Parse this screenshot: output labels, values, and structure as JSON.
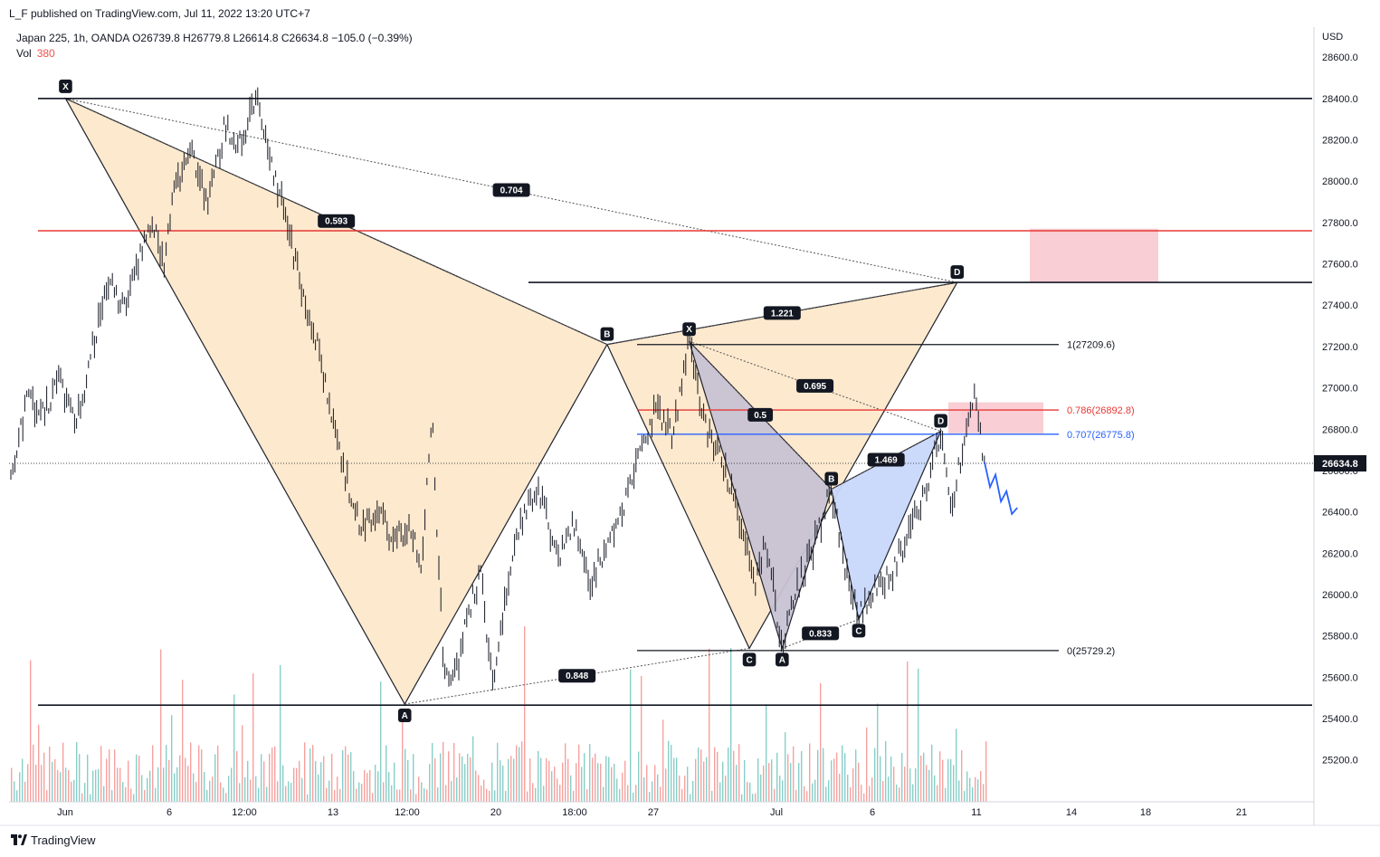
{
  "header": {
    "publisher": "L_F published on TradingView.com, Jul 11, 2022 13:20 UTC+7",
    "symbol_line": "Japan 225, 1h, OANDA  O26739.8  H26779.8  L26614.8  C26634.8  −105.0 (−0.39%)",
    "volume_label": "Vol",
    "volume_value": "380"
  },
  "footer": {
    "brand": "TradingView"
  },
  "colors": {
    "red_line": "#e53935",
    "blue_line": "#2962ff",
    "pattern_fill": "#fde8cc",
    "xabcd_fill": "#c8c3d4",
    "abcd_fill": "#c9d7fb",
    "zone_fill": "#f8c6cc",
    "candle": "#131722",
    "vol_up": "#26a69a",
    "vol_down": "#ef5350"
  },
  "chart_data": {
    "type": "line",
    "symbol": "Japan 225",
    "interval": "1h",
    "currency_label": "USD",
    "last_price": "26634.8",
    "ylim": [
      25000,
      28900
    ],
    "y_ticks": [
      "25200.0",
      "25400.0",
      "25600.0",
      "25800.0",
      "26000.0",
      "26200.0",
      "26400.0",
      "26600.0",
      "26800.0",
      "27000.0",
      "27200.0",
      "27400.0",
      "27600.0",
      "27800.0",
      "28000.0",
      "28200.0",
      "28400.0",
      "28600.0"
    ],
    "x_ticks": [
      "Jun",
      "6",
      "12:00",
      "13",
      "12:00",
      "20",
      "18:00",
      "27",
      "Jul",
      "6",
      "11",
      "14",
      "18",
      "21"
    ],
    "price_path": [
      {
        "t": 0,
        "p": 26550
      },
      {
        "t": 3,
        "p": 26950
      },
      {
        "t": 6,
        "p": 26880
      },
      {
        "t": 9,
        "p": 27030
      },
      {
        "t": 12,
        "p": 26820
      },
      {
        "t": 15,
        "p": 27200
      },
      {
        "t": 18,
        "p": 27500
      },
      {
        "t": 21,
        "p": 27380
      },
      {
        "t": 24,
        "p": 27700
      },
      {
        "t": 26,
        "p": 27800
      },
      {
        "t": 28,
        "p": 27580
      },
      {
        "t": 30,
        "p": 27980
      },
      {
        "t": 33,
        "p": 28150
      },
      {
        "t": 36,
        "p": 27880
      },
      {
        "t": 39,
        "p": 28250
      },
      {
        "t": 42,
        "p": 28180
      },
      {
        "t": 45,
        "p": 28390
      },
      {
        "t": 47,
        "p": 28120
      },
      {
        "t": 50,
        "p": 27850
      },
      {
        "t": 53,
        "p": 27500
      },
      {
        "t": 56,
        "p": 27200
      },
      {
        "t": 60,
        "p": 26700
      },
      {
        "t": 64,
        "p": 26300
      },
      {
        "t": 67,
        "p": 26400
      },
      {
        "t": 70,
        "p": 26250
      },
      {
        "t": 73,
        "p": 26350
      },
      {
        "t": 75,
        "p": 26150
      },
      {
        "t": 77,
        "p": 26850
      },
      {
        "t": 79,
        "p": 25700
      },
      {
        "t": 81,
        "p": 25580
      },
      {
        "t": 84,
        "p": 25950
      },
      {
        "t": 86,
        "p": 26100
      },
      {
        "t": 88,
        "p": 25550
      },
      {
        "t": 91,
        "p": 26100
      },
      {
        "t": 94,
        "p": 26400
      },
      {
        "t": 97,
        "p": 26500
      },
      {
        "t": 100,
        "p": 26150
      },
      {
        "t": 103,
        "p": 26350
      },
      {
        "t": 106,
        "p": 26050
      },
      {
        "t": 109,
        "p": 26250
      },
      {
        "t": 112,
        "p": 26400
      },
      {
        "t": 115,
        "p": 26700
      },
      {
        "t": 118,
        "p": 26900
      },
      {
        "t": 121,
        "p": 26750
      },
      {
        "t": 124,
        "p": 27230
      },
      {
        "t": 127,
        "p": 26800
      },
      {
        "t": 130,
        "p": 26650
      },
      {
        "t": 133,
        "p": 26400
      },
      {
        "t": 136,
        "p": 26050
      },
      {
        "t": 138,
        "p": 26250
      },
      {
        "t": 141,
        "p": 25760
      },
      {
        "t": 144,
        "p": 26050
      },
      {
        "t": 147,
        "p": 26250
      },
      {
        "t": 150,
        "p": 26520
      },
      {
        "t": 152,
        "p": 26200
      },
      {
        "t": 155,
        "p": 25880
      },
      {
        "t": 158,
        "p": 26050
      },
      {
        "t": 161,
        "p": 26100
      },
      {
        "t": 164,
        "p": 26300
      },
      {
        "t": 167,
        "p": 26500
      },
      {
        "t": 170,
        "p": 26780
      },
      {
        "t": 172,
        "p": 26400
      },
      {
        "t": 174,
        "p": 26720
      },
      {
        "t": 176,
        "p": 26990
      },
      {
        "t": 178,
        "p": 26640
      }
    ],
    "projection_path": [
      {
        "t": 178,
        "p": 26640
      },
      {
        "t": 179,
        "p": 26520
      },
      {
        "t": 180,
        "p": 26580
      },
      {
        "t": 181,
        "p": 26450
      },
      {
        "t": 182,
        "p": 26500
      },
      {
        "t": 183,
        "p": 26390
      },
      {
        "t": 184,
        "p": 26420
      }
    ],
    "horizontal_levels": [
      {
        "price": 28400,
        "x_from": 0.0,
        "color": "black"
      },
      {
        "price": 27760,
        "x_from": 0.0,
        "color": "red"
      },
      {
        "price": 27510,
        "x_from": 0.38,
        "color": "black"
      },
      {
        "price": 25465,
        "x_from": 0.0,
        "color": "black"
      }
    ],
    "fib_levels": [
      {
        "label": "1(27209.6)",
        "price": 27209.6,
        "color": "black"
      },
      {
        "label": "0.786(26892.8)",
        "price": 26892.8,
        "color": "red"
      },
      {
        "label": "0.707(26775.8)",
        "price": 26775.8,
        "color": "blue"
      },
      {
        "label": "0(25729.2)",
        "price": 25729.2,
        "color": "black"
      }
    ],
    "large_pattern": {
      "points": [
        {
          "label": "X",
          "t": 10,
          "p": 28400
        },
        {
          "label": "A",
          "t": 72,
          "p": 25470
        },
        {
          "label": "B",
          "t": 109,
          "p": 27210
        },
        {
          "label": "C",
          "t": 135,
          "p": 25740
        },
        {
          "label": "D",
          "t": 173,
          "p": 27510
        }
      ],
      "ratios": [
        "0.593",
        "0.848",
        "1.221",
        "0.704"
      ]
    },
    "small_pattern": {
      "points": [
        {
          "label": "X",
          "t": 124,
          "p": 27225
        },
        {
          "label": "A",
          "t": 141,
          "p": 25740
        },
        {
          "label": "B",
          "t": 150,
          "p": 26510
        },
        {
          "label": "C",
          "t": 155,
          "p": 25880
        },
        {
          "label": "D",
          "t": 170,
          "p": 26790
        }
      ],
      "ratios": [
        "0.5",
        "0.833",
        "1.469",
        "0.695"
      ]
    },
    "zones": [
      {
        "t0": 185,
        "t1": 208,
        "p0": 27510,
        "p1": 27770
      },
      {
        "t0": 168,
        "t1": 185,
        "p0": 26780,
        "p1": 26930
      }
    ]
  }
}
